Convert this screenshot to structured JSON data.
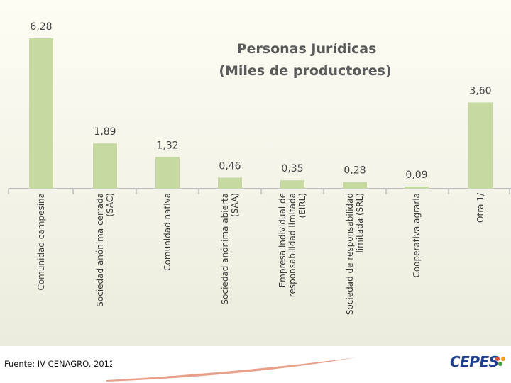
{
  "chart_data": {
    "type": "bar",
    "title": [
      "Personas Jurídicas",
      "(Miles de productores)"
    ],
    "categories": [
      [
        "Comunidad campesina"
      ],
      [
        "Sociedad anónima cerrada",
        "(SAC)"
      ],
      [
        "Comunidad nativa"
      ],
      [
        "Sociedad anónima abierta",
        "(SAA)"
      ],
      [
        "Empresa individual de",
        "responsabilidad limitada",
        "(EIRL)"
      ],
      [
        "Sociedad de responsabilidad",
        "limitada (SRL)"
      ],
      [
        "Cooperativa agraria"
      ],
      [
        "Otra 1/"
      ]
    ],
    "values": [
      6.28,
      1.89,
      1.32,
      0.46,
      0.35,
      0.28,
      0.09,
      3.6
    ],
    "value_labels": [
      "6,28",
      "1,89",
      "1,32",
      "0,46",
      "0,35",
      "0,28",
      "0,09",
      "3,60"
    ],
    "ylim": [
      0,
      6.5
    ],
    "bar_color": "#c5d9a0",
    "grid": false,
    "legend": "none"
  },
  "footer": {
    "source": "Fuente: IV CENAGRO. 2012",
    "logo_text": "CEPES",
    "logo_color": "#1f3f8f",
    "swoosh_color": "#e8a08a"
  }
}
